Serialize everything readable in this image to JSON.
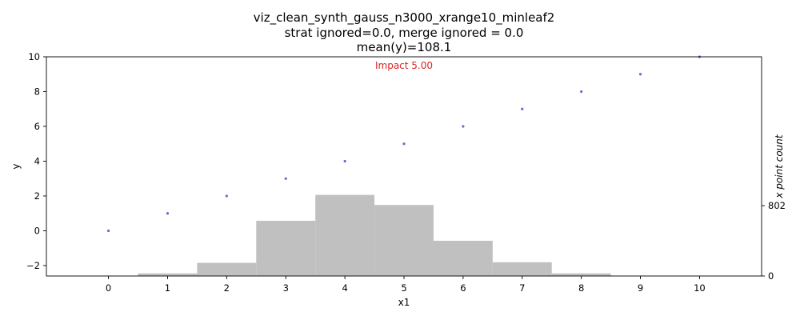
{
  "chart_data": {
    "type": "scatter",
    "title_lines": [
      "viz_clean_synth_gauss_n3000_xrange10_minleaf2",
      "strat ignored=0.0, merge ignored = 0.0",
      "mean(y)=108.1"
    ],
    "xlabel": "x1",
    "ylabel": "y",
    "ylabel_right": "x point count",
    "xlim": [
      -1.05,
      11.05
    ],
    "ylim": [
      -2.6,
      10
    ],
    "xticks": [
      "0",
      "1",
      "2",
      "3",
      "4",
      "5",
      "6",
      "7",
      "8",
      "9",
      "10"
    ],
    "yticks": [
      "−2",
      "0",
      "2",
      "4",
      "6",
      "8",
      "10"
    ],
    "right_ticks": [
      0,
      802
    ],
    "right_ylim": [
      0,
      2500
    ],
    "annotation": {
      "text": "Impact 5.00",
      "x": 5.0,
      "y": 9.3,
      "color": "#d62728"
    },
    "series": [
      {
        "x": [
          0,
          1,
          2,
          3,
          4,
          5,
          6,
          7,
          8,
          9,
          10
        ],
        "y": [
          0,
          1,
          2,
          3,
          4,
          5,
          6,
          7,
          8,
          9,
          10
        ],
        "color": "#6a6acd"
      }
    ],
    "histogram": {
      "bin_centers": [
        0,
        1,
        2,
        3,
        4,
        5,
        6,
        7,
        8,
        9,
        10
      ],
      "counts": [
        3,
        30,
        150,
        630,
        925,
        810,
        402,
        157,
        30,
        3,
        0
      ],
      "color": "#c0c0c0"
    }
  }
}
